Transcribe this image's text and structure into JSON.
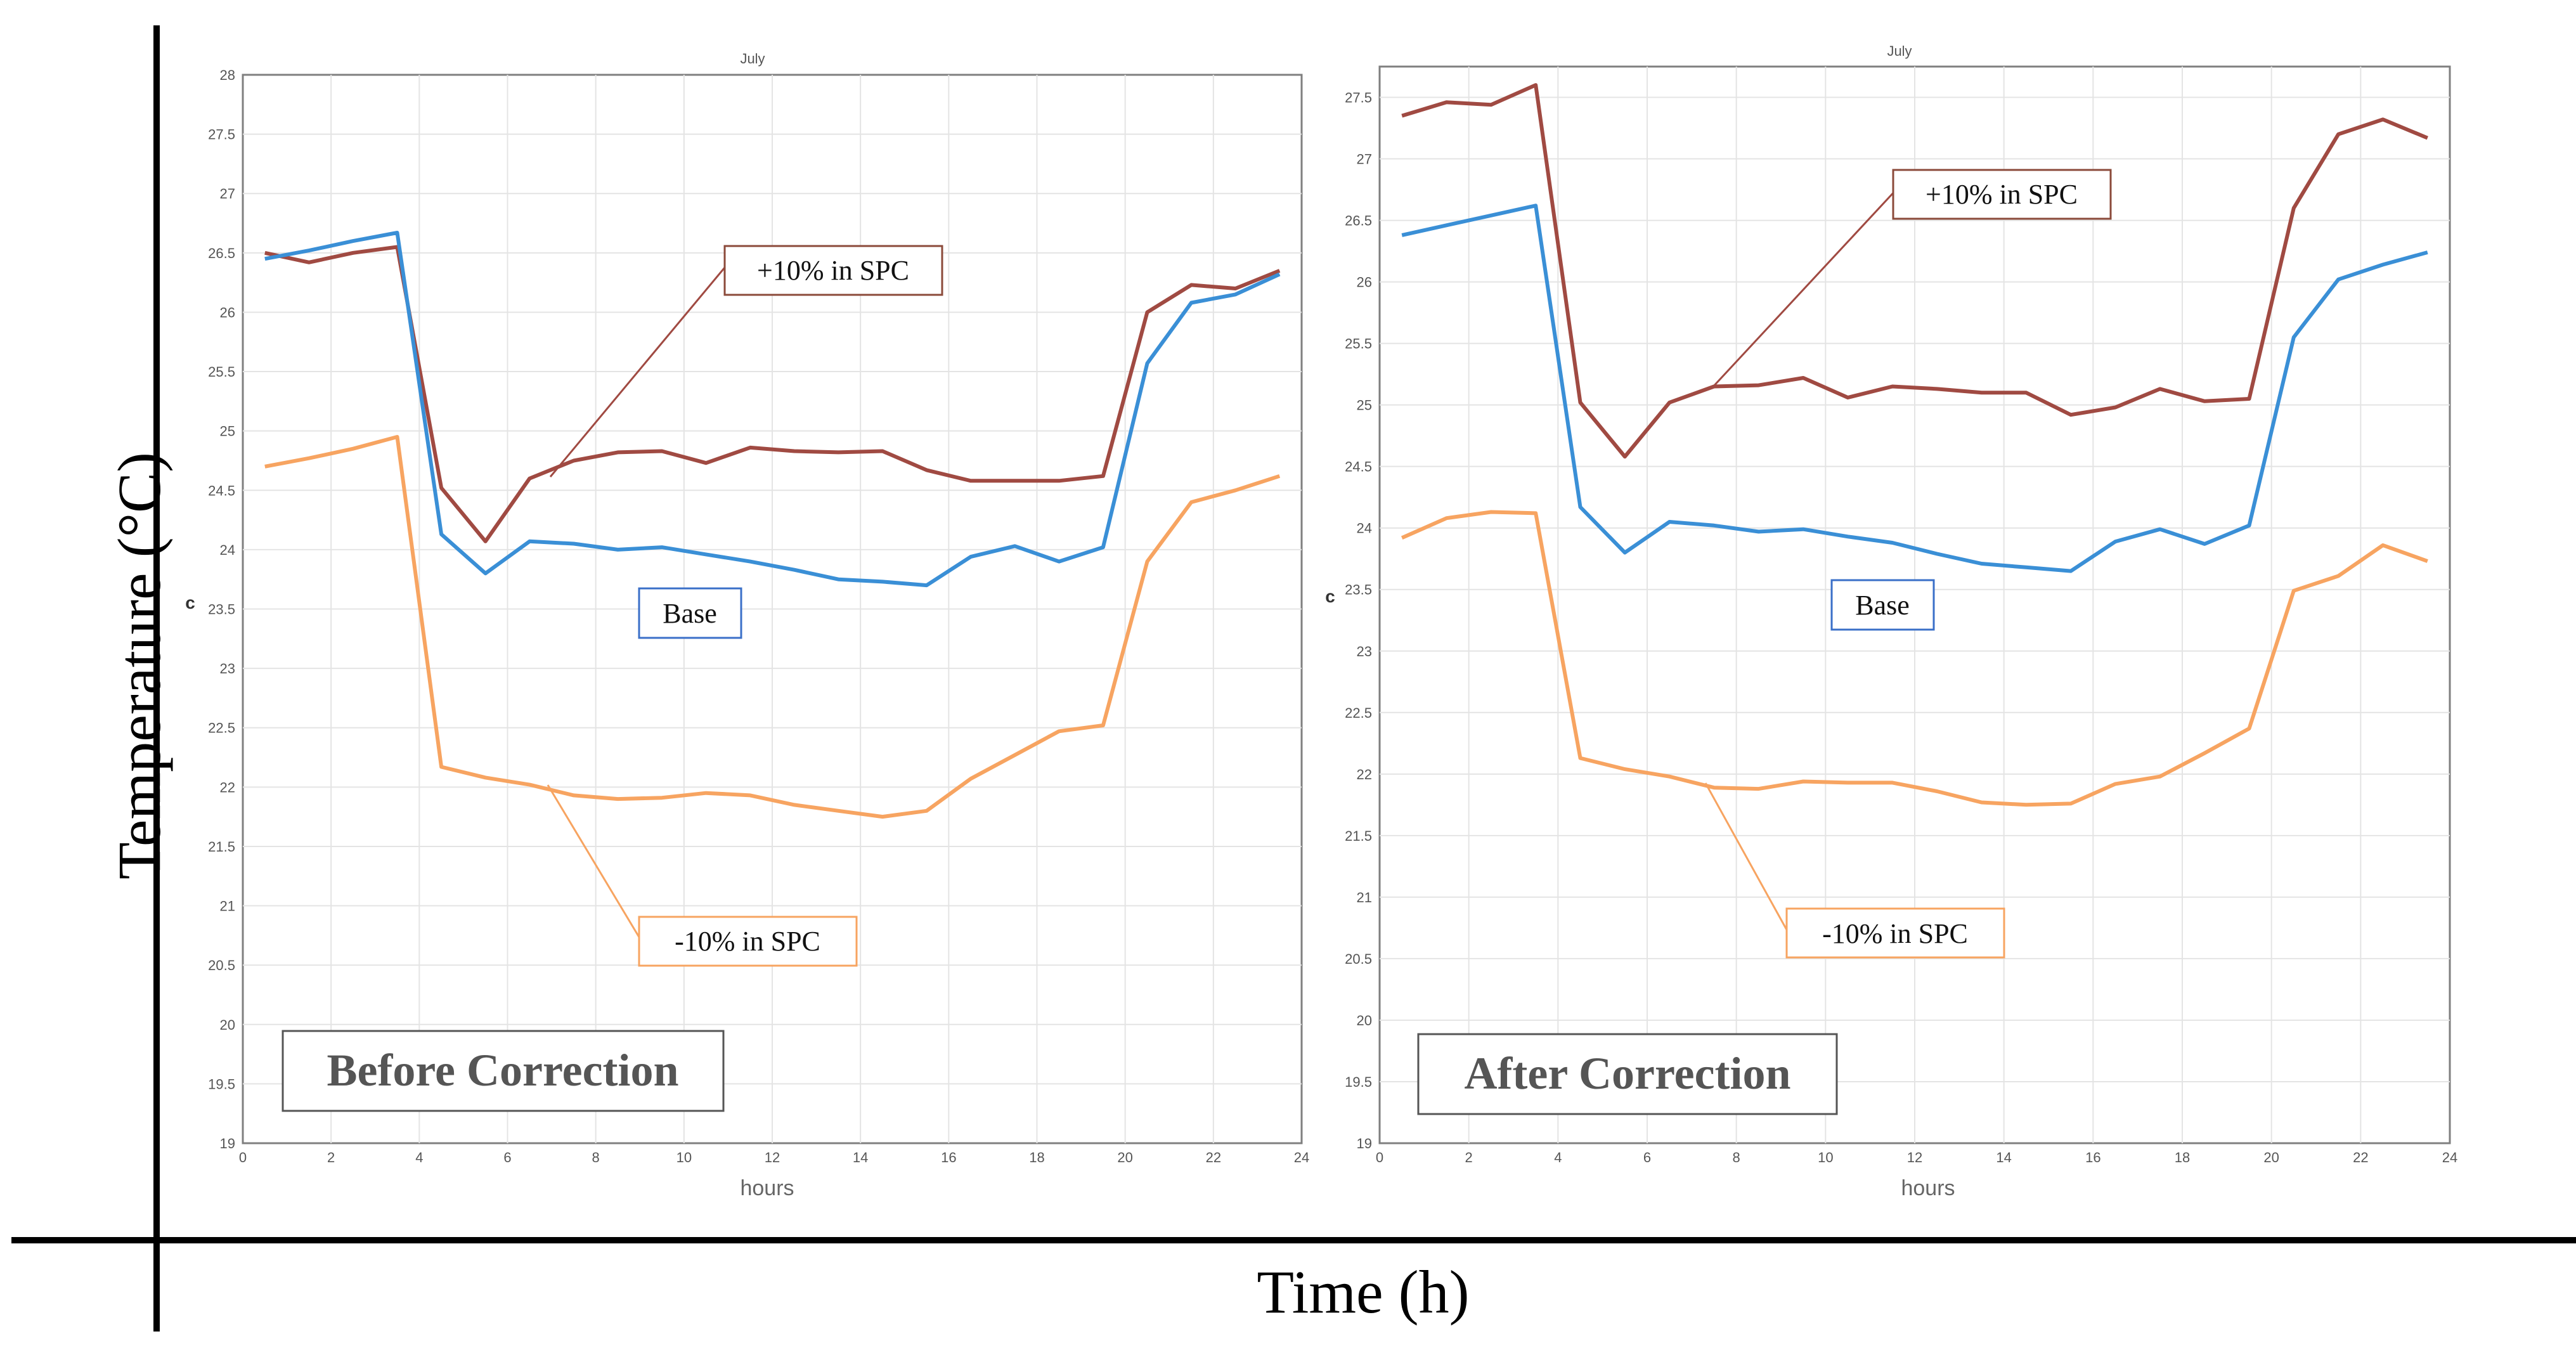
{
  "figure": {
    "y_label": "Temperature (°C)",
    "x_label": "Time (h)"
  },
  "colors": {
    "plus10": "#A04A42",
    "base": "#3A8FD6",
    "minus10": "#F7A461",
    "grid": "#E4E4E4",
    "axis": "#7F7F7F"
  },
  "chart_data": [
    {
      "type": "line",
      "title": "July",
      "xlabel": "hours",
      "ylabel": "c",
      "xlim": [
        0,
        24
      ],
      "ylim": [
        19,
        28
      ],
      "xticks": [
        "0",
        "2",
        "4",
        "6",
        "8",
        "10",
        "12",
        "14",
        "16",
        "18",
        "20",
        "22",
        "24"
      ],
      "yticks": [
        "19",
        "19.5",
        "20",
        "20.5",
        "21",
        "21.5",
        "22",
        "22.5",
        "23",
        "23.5",
        "24",
        "24.5",
        "25",
        "25.5",
        "26",
        "26.5",
        "27",
        "27.5",
        "28"
      ],
      "box_label": "Before Correction",
      "x": [
        0.5,
        1.5,
        2.5,
        3.5,
        4.5,
        5.5,
        6.5,
        7.5,
        8.5,
        9.5,
        10.5,
        11.5,
        12.5,
        13.5,
        14.5,
        15.5,
        16.5,
        17.5,
        18.5,
        19.5,
        20.5,
        21.5,
        22.5,
        23.5
      ],
      "series": [
        {
          "name": "+10% in SPC",
          "color_key": "plus10",
          "values": [
            26.5,
            26.42,
            26.5,
            26.55,
            24.52,
            24.07,
            24.6,
            24.75,
            24.82,
            24.83,
            24.73,
            24.86,
            24.83,
            24.82,
            24.83,
            24.67,
            24.58,
            24.58,
            24.58,
            24.62,
            26.0,
            26.23,
            26.2,
            26.35
          ]
        },
        {
          "name": "Base",
          "color_key": "base",
          "values": [
            26.45,
            26.52,
            26.6,
            26.67,
            24.13,
            23.8,
            24.07,
            24.05,
            24.0,
            24.02,
            23.96,
            23.9,
            23.83,
            23.75,
            23.73,
            23.7,
            23.94,
            24.03,
            23.9,
            24.02,
            25.57,
            26.08,
            26.15,
            26.32
          ]
        },
        {
          "name": "-10% in SPC",
          "color_key": "minus10",
          "values": [
            24.7,
            24.77,
            24.85,
            24.95,
            22.17,
            22.08,
            22.02,
            21.93,
            21.9,
            21.91,
            21.95,
            21.93,
            21.85,
            21.8,
            21.75,
            21.8,
            22.07,
            22.27,
            22.47,
            22.52,
            23.9,
            24.4,
            24.5,
            24.62
          ]
        }
      ],
      "annotations": [
        {
          "text": "+10% in SPC",
          "series": 0
        },
        {
          "text": "Base",
          "series": 1
        },
        {
          "text": "-10% in SPC",
          "series": 2
        }
      ]
    },
    {
      "type": "line",
      "title": "July",
      "xlabel": "hours",
      "ylabel": "c",
      "xlim": [
        0,
        24
      ],
      "ylim": [
        19,
        27.75
      ],
      "xticks": [
        "0",
        "2",
        "4",
        "6",
        "8",
        "10",
        "12",
        "14",
        "16",
        "18",
        "20",
        "22",
        "24"
      ],
      "yticks": [
        "19",
        "19.5",
        "20",
        "20.5",
        "21",
        "21.5",
        "22",
        "22.5",
        "23",
        "23.5",
        "24",
        "24.5",
        "25",
        "25.5",
        "26",
        "26.5",
        "27",
        "27.5"
      ],
      "box_label": "After Correction",
      "x": [
        0.5,
        1.5,
        2.5,
        3.5,
        4.5,
        5.5,
        6.5,
        7.5,
        8.5,
        9.5,
        10.5,
        11.5,
        12.5,
        13.5,
        14.5,
        15.5,
        16.5,
        17.5,
        18.5,
        19.5,
        20.5,
        21.5,
        22.5,
        23.5
      ],
      "series": [
        {
          "name": "+10% in SPC",
          "color_key": "plus10",
          "values": [
            27.35,
            27.46,
            27.44,
            27.6,
            25.02,
            24.58,
            25.02,
            25.15,
            25.16,
            25.22,
            25.06,
            25.15,
            25.13,
            25.1,
            25.1,
            24.92,
            24.98,
            25.13,
            25.03,
            25.05,
            26.6,
            27.2,
            27.32,
            27.17
          ]
        },
        {
          "name": "Base",
          "color_key": "base",
          "values": [
            26.38,
            26.46,
            26.54,
            26.62,
            24.17,
            23.8,
            24.05,
            24.02,
            23.97,
            23.99,
            23.93,
            23.88,
            23.79,
            23.71,
            23.68,
            23.65,
            23.89,
            23.99,
            23.87,
            24.02,
            25.55,
            26.02,
            26.14,
            26.24
          ]
        },
        {
          "name": "-10% in SPC",
          "color_key": "minus10",
          "values": [
            23.92,
            24.08,
            24.13,
            24.12,
            22.13,
            22.04,
            21.98,
            21.89,
            21.88,
            21.94,
            21.93,
            21.93,
            21.86,
            21.77,
            21.75,
            21.76,
            21.92,
            21.98,
            22.17,
            22.37,
            23.49,
            23.61,
            23.86,
            23.73
          ]
        }
      ],
      "annotations": [
        {
          "text": "+10% in SPC",
          "series": 0
        },
        {
          "text": "Base",
          "series": 1
        },
        {
          "text": "-10% in SPC",
          "series": 2
        }
      ]
    }
  ]
}
